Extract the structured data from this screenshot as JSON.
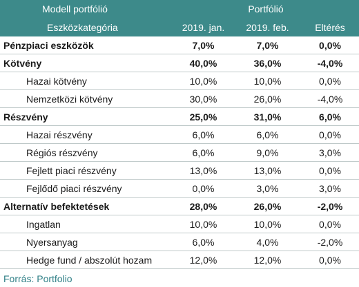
{
  "header": {
    "model_label": "Modell portfólió",
    "portfolio_label": "Portfólió",
    "category_label": "Eszközkategória",
    "col_jan": "2019. jan.",
    "col_feb": "2019. feb.",
    "col_diff": "Eltérés"
  },
  "rows": [
    {
      "name": "Pénzpiaci eszközök",
      "jan": "7,0%",
      "feb": "7,0%",
      "diff": "0,0%"
    },
    {
      "name": "Kötvény",
      "jan": "40,0%",
      "feb": "36,0%",
      "diff": "-4,0%"
    },
    {
      "name": "Hazai kötvény",
      "jan": "10,0%",
      "feb": "10,0%",
      "diff": "0,0%"
    },
    {
      "name": "Nemzetközi kötvény",
      "jan": "30,0%",
      "feb": "26,0%",
      "diff": "-4,0%"
    },
    {
      "name": "Részvény",
      "jan": "25,0%",
      "feb": "31,0%",
      "diff": "6,0%"
    },
    {
      "name": "Hazai részvény",
      "jan": "6,0%",
      "feb": "6,0%",
      "diff": "0,0%"
    },
    {
      "name": "Régiós részvény",
      "jan": "6,0%",
      "feb": "9,0%",
      "diff": "3,0%"
    },
    {
      "name": "Fejlett piaci részvény",
      "jan": "13,0%",
      "feb": "13,0%",
      "diff": "0,0%"
    },
    {
      "name": "Fejlődő piaci részvény",
      "jan": "0,0%",
      "feb": "3,0%",
      "diff": "3,0%"
    },
    {
      "name": "Alternatív befektetések",
      "jan": "28,0%",
      "feb": "26,0%",
      "diff": "-2,0%"
    },
    {
      "name": "Ingatlan",
      "jan": "10,0%",
      "feb": "10,0%",
      "diff": "0,0%"
    },
    {
      "name": "Nyersanyag",
      "jan": "6,0%",
      "feb": "4,0%",
      "diff": "-2,0%"
    },
    {
      "name": "Hedge fund / abszolút hozam",
      "jan": "12,0%",
      "feb": "12,0%",
      "diff": "0,0%"
    }
  ],
  "source": "Forrás: Portfolio",
  "colors": {
    "header_bg": "#3d8a8a",
    "source_text": "#2f7f86"
  }
}
